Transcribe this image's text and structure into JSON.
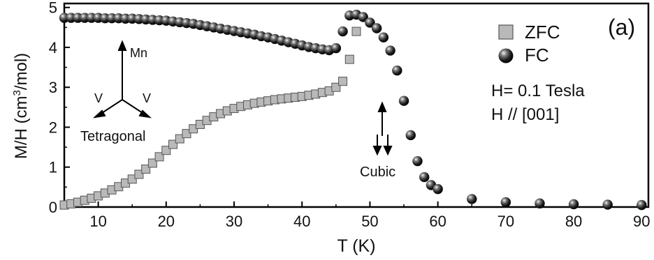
{
  "chart_data": {
    "type": "scatter",
    "panel_label": "(a)",
    "xlabel": "T (K)",
    "ylabel_main": "M/H (cm",
    "ylabel_sup": "3",
    "ylabel_tail": "/mol)",
    "xlim": [
      5,
      91
    ],
    "ylim": [
      0,
      5.1
    ],
    "x_ticks": [
      10,
      20,
      30,
      40,
      50,
      60,
      70,
      80,
      90
    ],
    "y_ticks": [
      0,
      1,
      2,
      3,
      4,
      5
    ],
    "legend_position": "top-right",
    "series": [
      {
        "name": "ZFC",
        "marker": "square",
        "color": "#b9b9b9",
        "x": [
          5,
          6,
          7,
          8,
          9,
          10,
          11,
          12,
          13,
          14,
          15,
          16,
          17,
          18,
          19,
          20,
          21,
          22,
          23,
          24,
          25,
          26,
          27,
          28,
          29,
          30,
          31,
          32,
          33,
          34,
          35,
          36,
          37,
          38,
          39,
          40,
          41,
          42,
          43,
          44,
          45,
          46,
          47,
          48
        ],
        "y": [
          0.05,
          0.08,
          0.12,
          0.17,
          0.22,
          0.28,
          0.35,
          0.43,
          0.51,
          0.6,
          0.7,
          0.82,
          0.95,
          1.1,
          1.26,
          1.42,
          1.57,
          1.71,
          1.84,
          1.96,
          2.07,
          2.17,
          2.26,
          2.34,
          2.41,
          2.47,
          2.52,
          2.56,
          2.6,
          2.63,
          2.66,
          2.69,
          2.71,
          2.73,
          2.75,
          2.77,
          2.8,
          2.83,
          2.87,
          2.91,
          3.0,
          3.15,
          3.7,
          4.4
        ]
      },
      {
        "name": "FC",
        "marker": "sphere",
        "color": "#1a1a1a",
        "x": [
          5,
          6,
          7,
          8,
          9,
          10,
          11,
          12,
          13,
          14,
          15,
          16,
          17,
          18,
          19,
          20,
          21,
          22,
          23,
          24,
          25,
          26,
          27,
          28,
          29,
          30,
          31,
          32,
          33,
          34,
          35,
          36,
          37,
          38,
          39,
          40,
          41,
          42,
          43,
          44,
          45,
          46,
          47,
          48,
          49,
          50,
          51,
          52,
          53,
          54,
          55,
          56,
          57,
          58,
          59,
          60,
          65,
          70,
          75,
          80,
          85,
          90
        ],
        "y": [
          4.74,
          4.74,
          4.74,
          4.74,
          4.74,
          4.74,
          4.73,
          4.73,
          4.73,
          4.72,
          4.72,
          4.71,
          4.7,
          4.69,
          4.68,
          4.67,
          4.65,
          4.63,
          4.61,
          4.59,
          4.56,
          4.53,
          4.5,
          4.47,
          4.44,
          4.41,
          4.38,
          4.35,
          4.32,
          4.28,
          4.25,
          4.21,
          4.17,
          4.13,
          4.09,
          4.05,
          4.01,
          3.98,
          3.95,
          3.93,
          3.98,
          4.4,
          4.8,
          4.82,
          4.76,
          4.62,
          4.48,
          4.25,
          3.92,
          3.42,
          2.66,
          1.8,
          1.15,
          0.75,
          0.55,
          0.45,
          0.2,
          0.12,
          0.09,
          0.07,
          0.06,
          0.05
        ]
      }
    ],
    "annotations": {
      "field": "H= 0.1 Tesla",
      "direction": "H // [001]",
      "mn_label": "Mn",
      "v_left_label": "V",
      "v_right_label": "V",
      "tetragonal_label": "Tetragonal",
      "cubic_label": "Cubic"
    }
  }
}
